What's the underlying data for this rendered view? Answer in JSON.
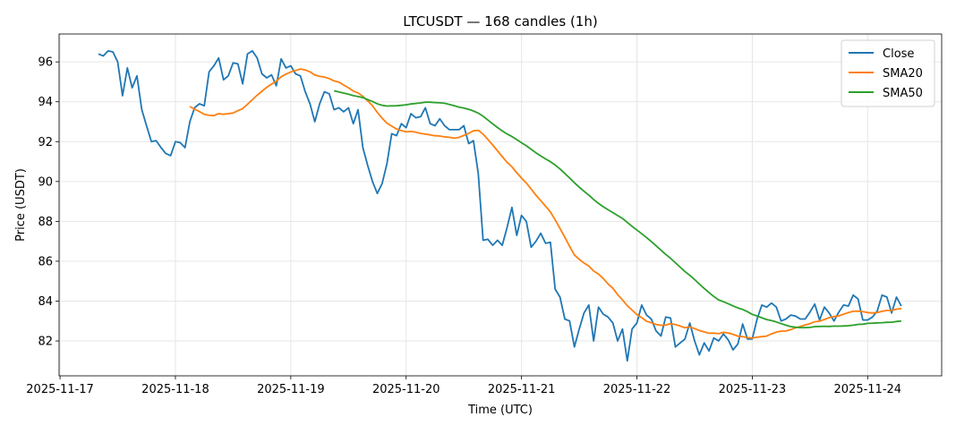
{
  "chart_data": {
    "type": "line",
    "title": "LTCUSDT — 168 candles (1h)",
    "xlabel": "Time (UTC)",
    "ylabel": "Price (USDT)",
    "x_start": "2025-11-17 08:00",
    "x_step_hours": 1,
    "x_unit": "hours since 2025-11-17 00:00",
    "xlim": [
      -0.2,
      183.4
    ],
    "ylim": [
      80.25,
      97.4
    ],
    "grid": true,
    "legend_position": "top-right",
    "x_ticks": [
      {
        "label": "2025-11-17",
        "value": 0
      },
      {
        "label": "2025-11-18",
        "value": 24
      },
      {
        "label": "2025-11-19",
        "value": 48
      },
      {
        "label": "2025-11-20",
        "value": 72
      },
      {
        "label": "2025-11-21",
        "value": 96
      },
      {
        "label": "2025-11-22",
        "value": 120
      },
      {
        "label": "2025-11-23",
        "value": 144
      },
      {
        "label": "2025-11-24",
        "value": 168
      }
    ],
    "y_ticks": [
      82,
      84,
      86,
      88,
      90,
      92,
      94,
      96
    ],
    "series": [
      {
        "name": "Close",
        "color": "#1f77b4",
        "kind": "raw"
      },
      {
        "name": "SMA20",
        "color": "#ff7f0e",
        "kind": "sma",
        "window": 20
      },
      {
        "name": "SMA50",
        "color": "#2ca02c",
        "kind": "sma",
        "window": 50
      }
    ],
    "close": [
      96.4,
      96.3,
      96.55,
      96.5,
      96.0,
      94.3,
      95.7,
      94.7,
      95.3,
      93.6,
      92.8,
      92.0,
      92.05,
      91.7,
      91.4,
      91.3,
      92.0,
      91.95,
      91.7,
      93.0,
      93.7,
      93.9,
      93.8,
      95.5,
      95.8,
      96.2,
      95.1,
      95.3,
      95.95,
      95.9,
      94.9,
      96.4,
      96.55,
      96.2,
      95.4,
      95.2,
      95.35,
      94.8,
      96.15,
      95.7,
      95.8,
      95.4,
      95.3,
      94.5,
      93.9,
      93.0,
      93.9,
      94.5,
      94.4,
      93.6,
      93.7,
      93.5,
      93.7,
      92.9,
      93.6,
      91.7,
      90.8,
      90.0,
      89.4,
      89.9,
      90.9,
      92.4,
      92.3,
      92.9,
      92.7,
      93.4,
      93.2,
      93.25,
      93.7,
      92.9,
      92.8,
      93.15,
      92.8,
      92.6,
      92.6,
      92.6,
      92.8,
      91.9,
      92.05,
      90.4,
      87.05,
      87.1,
      86.8,
      87.05,
      86.8,
      87.7,
      88.7,
      87.3,
      88.3,
      88.0,
      86.7,
      87.0,
      87.4,
      86.9,
      86.95,
      84.6,
      84.2,
      83.1,
      83.0,
      81.7,
      82.6,
      83.4,
      83.8,
      82.0,
      83.7,
      83.35,
      83.2,
      82.9,
      82.0,
      82.6,
      81.0,
      82.6,
      82.9,
      83.8,
      83.3,
      83.1,
      82.5,
      82.25,
      83.2,
      83.15,
      81.7,
      81.9,
      82.1,
      82.9,
      82.0,
      81.3,
      81.9,
      81.5,
      82.15,
      82.0,
      82.35,
      82.05,
      81.55,
      81.85,
      82.85,
      82.1,
      82.1,
      83.1,
      83.8,
      83.7,
      83.9,
      83.7,
      83.0,
      83.1,
      83.3,
      83.25,
      83.1,
      83.1,
      83.45,
      83.85,
      83.05,
      83.7,
      83.4,
      83.0,
      83.45,
      83.8,
      83.75,
      84.3,
      84.1,
      83.05,
      83.05,
      83.2,
      83.5,
      84.3,
      84.2,
      83.4,
      84.2,
      83.75
    ]
  }
}
